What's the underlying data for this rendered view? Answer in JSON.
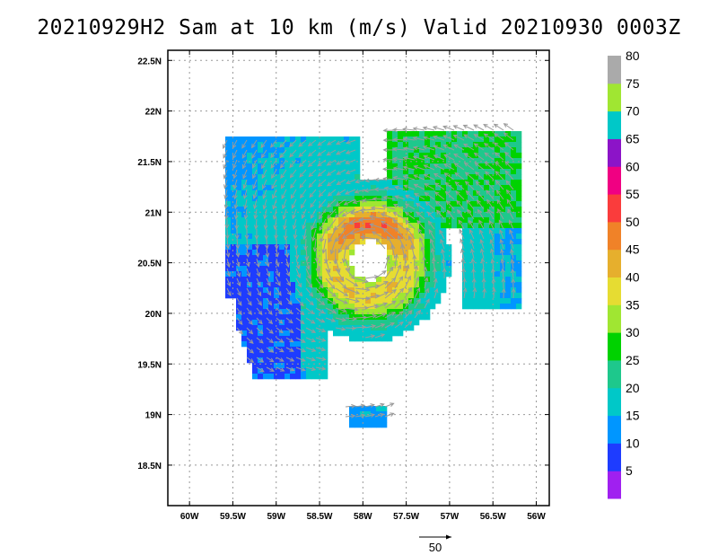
{
  "title": "20210929H2 Sam at 10 km (m/s) Valid 20210930 0003Z",
  "chart_data": {
    "type": "heatmap",
    "title": "20210929H2 Sam at 10 km (m/s) Valid 20210930 0003Z",
    "x_ticks": [
      "60W",
      "59.5W",
      "59W",
      "58.5W",
      "58W",
      "57.5W",
      "57W",
      "56.5W",
      "56W"
    ],
    "y_ticks": [
      "22.5N",
      "22N",
      "21.5N",
      "21N",
      "20.5N",
      "20N",
      "19.5N",
      "19N",
      "18.5N"
    ],
    "xlim": [
      -60.25,
      -55.85
    ],
    "ylim": [
      18.1,
      22.6
    ],
    "grid": true,
    "colorbar": {
      "labels": [
        "5",
        "10",
        "15",
        "20",
        "25",
        "30",
        "35",
        "40",
        "45",
        "50",
        "55",
        "60",
        "65",
        "70",
        "75",
        "80"
      ],
      "colors": [
        "#a020f0",
        "#1e3cff",
        "#0096ff",
        "#00c8c8",
        "#1ec88c",
        "#00d200",
        "#a0e632",
        "#e6dc32",
        "#e6af2d",
        "#f08228",
        "#fa3c3c",
        "#f00082",
        "#8c14c8",
        "#00c8c8",
        "#a0e632",
        "#aaaaaa"
      ]
    },
    "vortex_center": {
      "lon": -57.95,
      "lat": 20.55
    },
    "reference_vector": {
      "label": "50",
      "speed": 50
    }
  }
}
